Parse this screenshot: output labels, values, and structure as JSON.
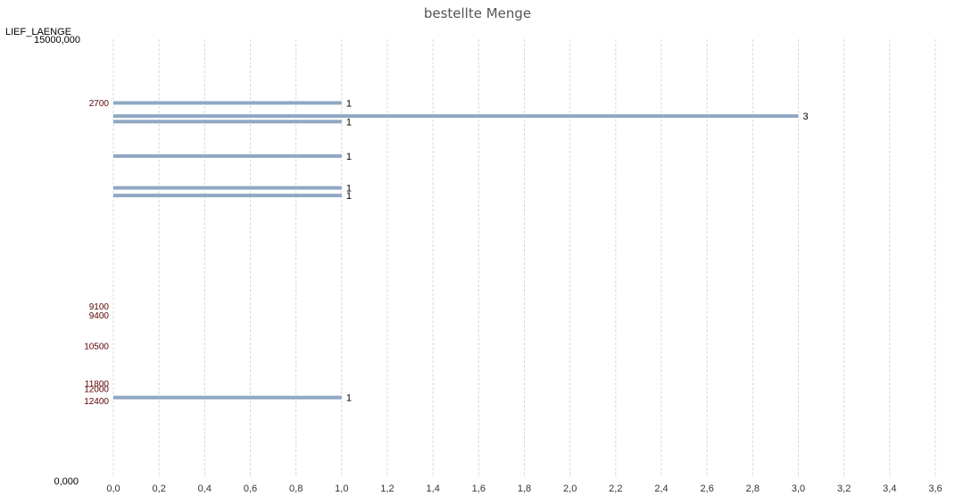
{
  "chart_data": {
    "type": "bar",
    "orientation": "horizontal",
    "title": "bestellte Menge",
    "ylabel": "LIEF_LAENGE",
    "y_top_label": "15000,000",
    "y_bottom_label": "0,000",
    "ylim": [
      0,
      15000
    ],
    "xlim": [
      0,
      3.6
    ],
    "x_ticks": [
      "0,0",
      "0,2",
      "0,4",
      "0,6",
      "0,8",
      "1,0",
      "1,2",
      "1,4",
      "1,6",
      "1,8",
      "2,0",
      "2,2",
      "2,4",
      "2,6",
      "2,8",
      "3,0",
      "3,2",
      "3,4",
      "3,6"
    ],
    "y_tick_labels": [
      {
        "label": "2700",
        "value": 12800
      },
      {
        "label": "9100",
        "value": 5830
      },
      {
        "label": "9400",
        "value": 5530
      },
      {
        "label": "10500",
        "value": 4480
      },
      {
        "label": "11800",
        "value": 3200
      },
      {
        "label": "12000",
        "value": 3010
      },
      {
        "label": "12400",
        "value": 2590
      }
    ],
    "bars": [
      {
        "y": 12820,
        "value": 1,
        "label": "1"
      },
      {
        "y": 12370,
        "value": 3,
        "label": "3"
      },
      {
        "y": 12180,
        "value": 1,
        "label": "1"
      },
      {
        "y": 11000,
        "value": 1,
        "label": "1"
      },
      {
        "y": 9910,
        "value": 1,
        "label": "1"
      },
      {
        "y": 9650,
        "value": 1,
        "label": "1"
      },
      {
        "y": 2730,
        "value": 1,
        "label": "1"
      }
    ],
    "bar_color": "#8fa8c4",
    "grid": true
  }
}
